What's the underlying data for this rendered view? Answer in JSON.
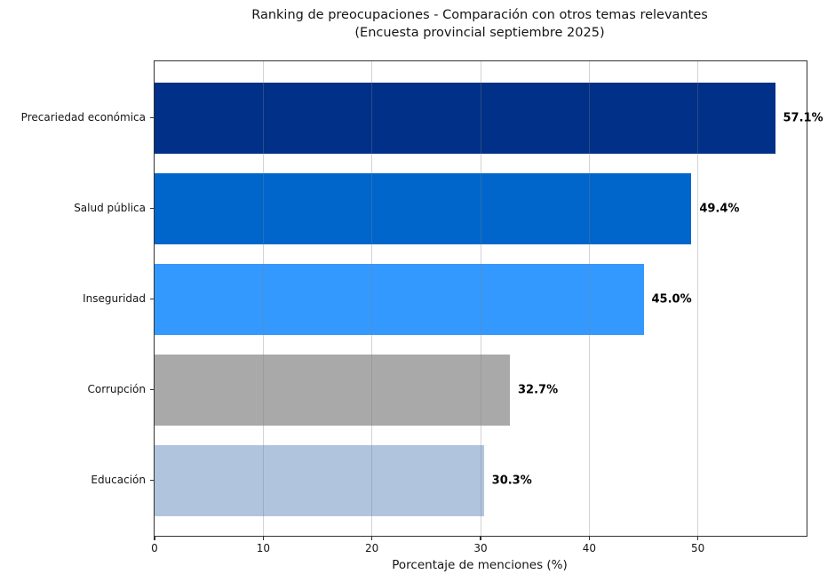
{
  "chart_data": {
    "type": "bar",
    "orientation": "horizontal",
    "title": "Ranking de preocupaciones - Comparación con otros temas relevantes",
    "subtitle": "(Encuesta provincial septiembre 2025)",
    "categories": [
      "Precariedad económica",
      "Salud pública",
      "Inseguridad",
      "Corrupción",
      "Educación"
    ],
    "values": [
      57.1,
      49.4,
      45.0,
      32.7,
      30.3
    ],
    "value_labels": [
      "57.1%",
      "49.4%",
      "45.0%",
      "32.7%",
      "30.3%"
    ],
    "bar_colors": [
      "#003087",
      "#0066CC",
      "#3399FF",
      "#A9A9A9",
      "#B0C4DE"
    ],
    "xlabel": "Porcentaje de menciones (%)",
    "ylabel": "",
    "xlim": [
      0,
      60
    ],
    "xticks": [
      0,
      10,
      20,
      30,
      40,
      50
    ],
    "xtick_labels": [
      "0",
      "10",
      "20",
      "30",
      "40",
      "50"
    ],
    "grid": "vertical gridlines at x ticks, drawn above bars",
    "gridline_color": "#b0b0b0",
    "legend": "none",
    "frame": "full box",
    "value_label_color": "#000000",
    "text_color": "#151515"
  }
}
